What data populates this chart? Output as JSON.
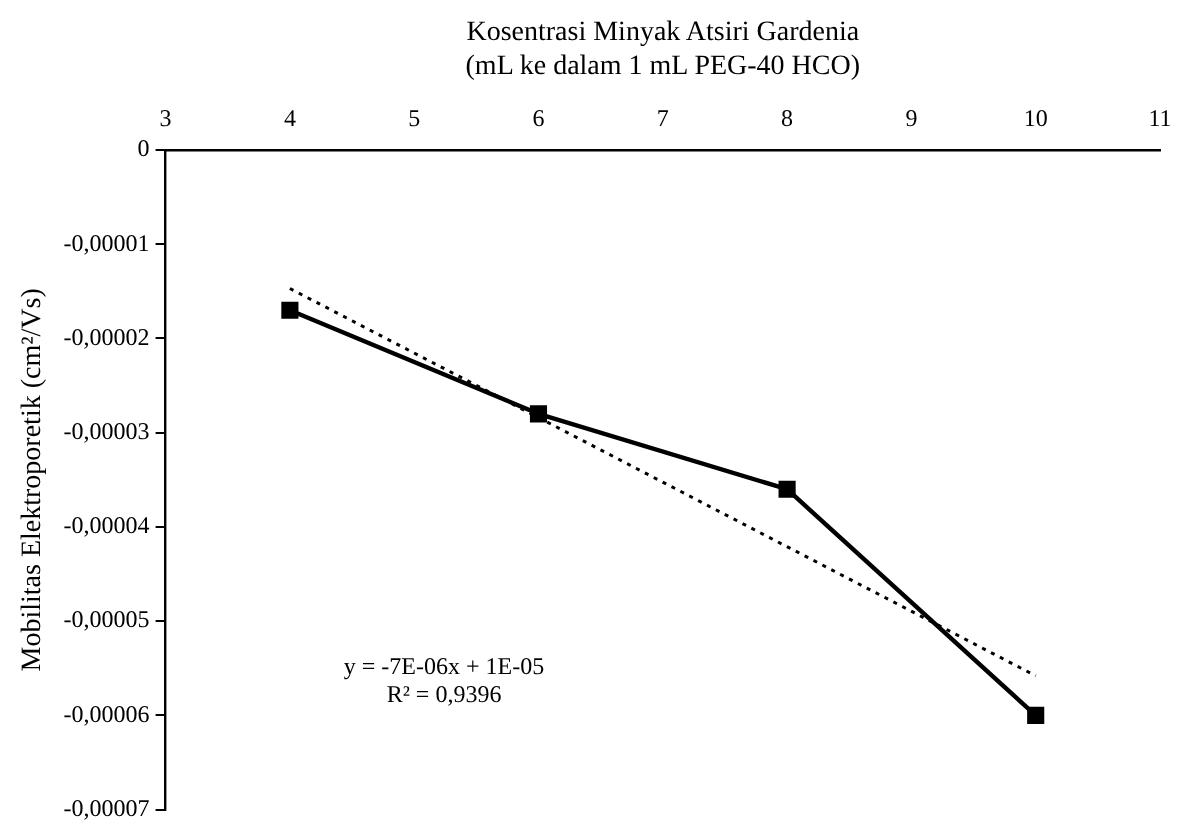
{
  "chart_data": {
    "type": "line",
    "xlabel": [
      "Kosentrasi Minyak Atsiri Gardenia",
      "(mL ke dalam 1 mL PEG-40 HCO)"
    ],
    "ylabel": "Mobilitas Elektroporetik (cm²/Vs)",
    "x": [
      4,
      6,
      8,
      10
    ],
    "series": [
      {
        "color": "#000000",
        "values": [
          -1.7e-05,
          -2.8e-05,
          -3.6e-05,
          -6e-05
        ],
        "marker": "square",
        "line_style": "solid"
      },
      {
        "type": "line",
        "color": "#000000",
        "x": [
          4,
          10
        ],
        "values": [
          -1.47e-05,
          -5.58e-05
        ],
        "marker": "none",
        "line_style": "dotted"
      }
    ],
    "xlim": [
      3,
      11
    ],
    "xticks": [
      3,
      4,
      5,
      6,
      7,
      8,
      9,
      10,
      11
    ],
    "ylim": [
      -7e-05,
      0
    ],
    "yticks": [
      {
        "value": 0,
        "label": "0"
      },
      {
        "value": -1e-05,
        "label": "-0,00001"
      },
      {
        "value": -2e-05,
        "label": "-0,00002"
      },
      {
        "value": -3e-05,
        "label": "-0,00003"
      },
      {
        "value": -4e-05,
        "label": "-0,00004"
      },
      {
        "value": -5e-05,
        "label": "-0,00005"
      },
      {
        "value": -6e-05,
        "label": "-0,00006"
      },
      {
        "value": -7e-05,
        "label": "-0,00007"
      }
    ],
    "annotations": [
      "y = -7E-06x + 1E-05",
      "R² = 0,9396"
    ],
    "grid": false,
    "legend": false
  }
}
